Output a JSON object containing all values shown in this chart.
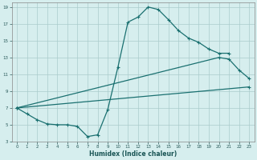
{
  "xlabel": "Humidex (Indice chaleur)",
  "bg_color": "#d6eeee",
  "grid_color": "#aacccc",
  "line_color": "#1a7070",
  "xlim": [
    -0.5,
    23.5
  ],
  "ylim": [
    3,
    19.5
  ],
  "xticks": [
    0,
    1,
    2,
    3,
    4,
    5,
    6,
    7,
    8,
    9,
    10,
    11,
    12,
    13,
    14,
    15,
    16,
    17,
    18,
    19,
    20,
    21,
    22,
    23
  ],
  "yticks": [
    3,
    5,
    7,
    9,
    11,
    13,
    15,
    17,
    19
  ],
  "curve1_x": [
    0,
    1,
    2,
    3,
    4,
    5,
    6,
    7,
    8,
    9,
    10,
    11,
    12,
    13,
    14,
    15,
    16,
    17,
    18,
    19,
    20,
    21
  ],
  "curve1_y": [
    7.0,
    6.3,
    5.6,
    5.1,
    5.0,
    5.0,
    4.8,
    3.6,
    3.8,
    6.8,
    11.8,
    17.2,
    17.8,
    19.0,
    18.7,
    17.5,
    16.2,
    15.3,
    14.8,
    14.0,
    13.5,
    13.5
  ],
  "curve2_x": [
    0,
    23
  ],
  "curve2_y": [
    7.0,
    9.5
  ],
  "curve3_x": [
    0,
    20,
    21,
    22,
    23
  ],
  "curve3_y": [
    7.0,
    13.0,
    12.8,
    11.5,
    10.5
  ],
  "markersize": 2.0,
  "linewidth": 0.9
}
